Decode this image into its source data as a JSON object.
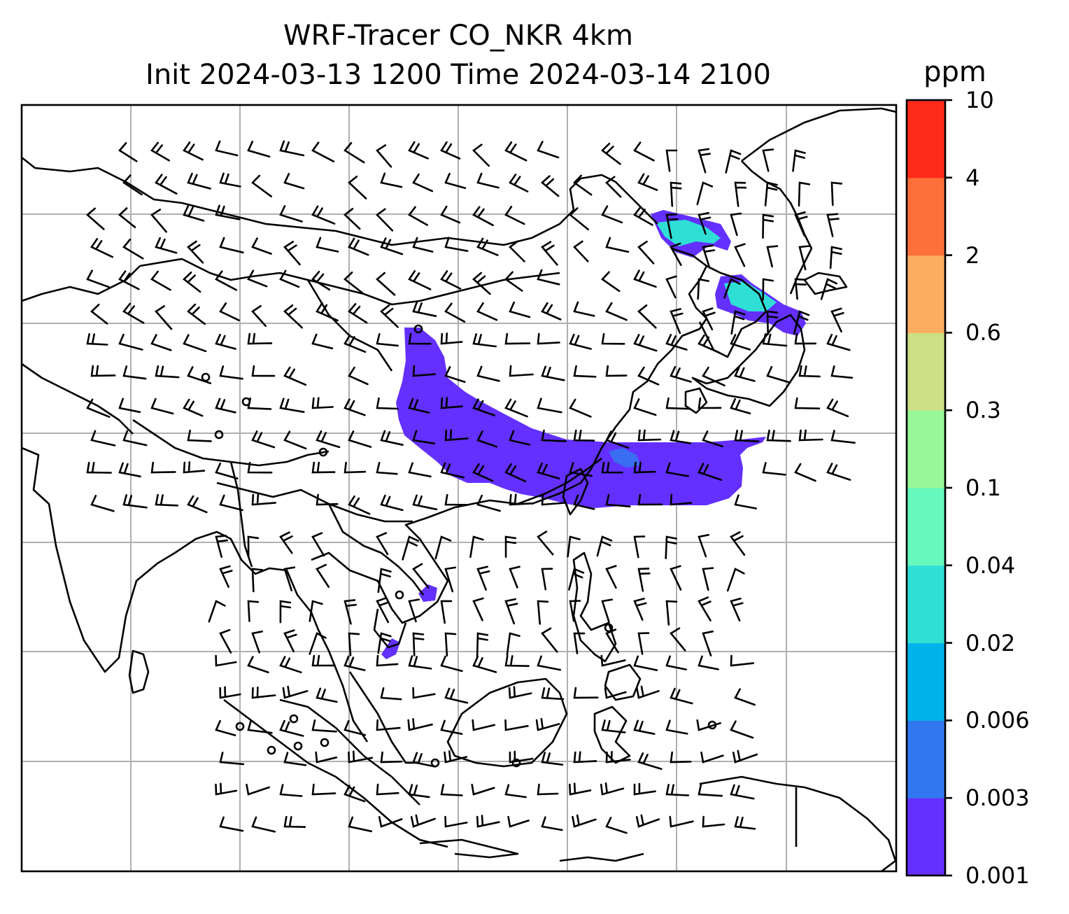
{
  "title": {
    "line1": "WRF-Tracer CO_NKR 4km",
    "line2": "Init 2024-03-13 1200 Time 2024-03-14 2100"
  },
  "colorbar": {
    "unit": "ppm",
    "levels": [
      "0.001",
      "0.003",
      "0.006",
      "0.02",
      "0.04",
      "0.1",
      "0.3",
      "0.6",
      "2",
      "4",
      "10"
    ],
    "colors": [
      "#6330ff",
      "#3178f0",
      "#00b3ea",
      "#2fdfd5",
      "#66f9bd",
      "#98f799",
      "#cde085",
      "#fdad60",
      "#ff6f3a",
      "#ff2b1a"
    ]
  },
  "map": {
    "frame_color": "#000000",
    "grid_color": "#b0b0b0",
    "coastline_color": "#000000",
    "barb_color": "#000000",
    "tracer_fill": "#6330ff",
    "tracer_secondary": "#3178f0",
    "tracer_tertiary": "#2fdfd5"
  }
}
